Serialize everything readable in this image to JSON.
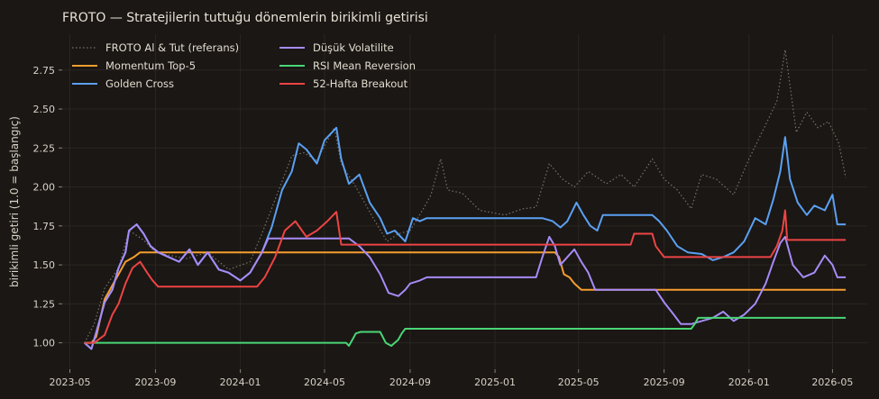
{
  "chart_data": {
    "type": "line",
    "title": "FROTO — Stratejilerin tuttuğu dönemlerin birikimli getirisi",
    "xlabel": "",
    "ylabel": "birikimli getiri (1.0 = başlangıç)",
    "xlim": [
      "2023-04-20",
      "2026-06-20"
    ],
    "ylim": [
      0.83,
      2.98
    ],
    "grid": true,
    "legend_position": "top-left",
    "x_ticks": [
      "2023-05",
      "2023-09",
      "2024-01",
      "2024-05",
      "2024-09",
      "2025-01",
      "2025-05",
      "2025-09",
      "2026-01",
      "2026-05"
    ],
    "y_ticks": [
      "1.00",
      "1.25",
      "1.50",
      "1.75",
      "2.00",
      "2.25",
      "2.50",
      "2.75"
    ],
    "colors": {
      "background": "#1a1714",
      "grid": "#2a2621",
      "text": "#d8d2c6",
      "benchmark": "#7a736a",
      "momentum": "#f59e2e",
      "golden": "#5ba0f2",
      "lowvol": "#a78bf7",
      "rsi": "#4ad576",
      "breakout": "#ec4444"
    },
    "series": [
      {
        "name": "FROTO Al & Tut (referans)",
        "color": "#7a736a",
        "dashed": true,
        "points": [
          [
            "2023-05-22",
            1.0
          ],
          [
            "2023-06-05",
            1.12
          ],
          [
            "2023-06-20",
            1.35
          ],
          [
            "2023-07-10",
            1.48
          ],
          [
            "2023-07-25",
            1.72
          ],
          [
            "2023-08-15",
            1.66
          ],
          [
            "2023-09-01",
            1.58
          ],
          [
            "2023-10-15",
            1.54
          ],
          [
            "2023-11-15",
            1.58
          ],
          [
            "2023-12-15",
            1.47
          ],
          [
            "2024-01-15",
            1.52
          ],
          [
            "2024-02-01",
            1.7
          ],
          [
            "2024-02-20",
            1.92
          ],
          [
            "2024-03-15",
            2.2
          ],
          [
            "2024-04-01",
            2.22
          ],
          [
            "2024-04-20",
            2.17
          ],
          [
            "2024-05-15",
            2.38
          ],
          [
            "2024-05-25",
            2.15
          ],
          [
            "2024-06-15",
            2.0
          ],
          [
            "2024-07-10",
            1.8
          ],
          [
            "2024-07-30",
            1.65
          ],
          [
            "2024-08-15",
            1.7
          ],
          [
            "2024-09-01",
            1.72
          ],
          [
            "2024-09-20",
            1.86
          ],
          [
            "2024-10-01",
            1.95
          ],
          [
            "2024-10-15",
            2.18
          ],
          [
            "2024-10-25",
            1.98
          ],
          [
            "2024-11-15",
            1.96
          ],
          [
            "2024-12-10",
            1.85
          ],
          [
            "2025-01-15",
            1.82
          ],
          [
            "2025-02-10",
            1.86
          ],
          [
            "2025-03-01",
            1.87
          ],
          [
            "2025-03-20",
            2.15
          ],
          [
            "2025-04-08",
            2.05
          ],
          [
            "2025-04-25",
            2.0
          ],
          [
            "2025-05-15",
            2.1
          ],
          [
            "2025-06-10",
            2.02
          ],
          [
            "2025-07-01",
            2.08
          ],
          [
            "2025-07-20",
            2.0
          ],
          [
            "2025-08-15",
            2.18
          ],
          [
            "2025-09-01",
            2.05
          ],
          [
            "2025-09-20",
            1.98
          ],
          [
            "2025-10-10",
            1.86
          ],
          [
            "2025-10-25",
            2.08
          ],
          [
            "2025-11-15",
            2.05
          ],
          [
            "2025-12-10",
            1.95
          ],
          [
            "2026-01-01",
            2.18
          ],
          [
            "2026-01-25",
            2.4
          ],
          [
            "2026-02-10",
            2.55
          ],
          [
            "2026-02-22",
            2.88
          ],
          [
            "2026-03-10",
            2.35
          ],
          [
            "2026-03-25",
            2.48
          ],
          [
            "2026-04-10",
            2.38
          ],
          [
            "2026-04-25",
            2.42
          ],
          [
            "2026-05-10",
            2.28
          ],
          [
            "2026-05-20",
            2.06
          ]
        ]
      },
      {
        "name": "Momentum Top-5",
        "color": "#f59e2e",
        "points": [
          [
            "2023-05-22",
            1.0
          ],
          [
            "2023-06-01",
            1.0
          ],
          [
            "2023-06-08",
            1.04
          ],
          [
            "2023-06-20",
            1.28
          ],
          [
            "2023-07-05",
            1.4
          ],
          [
            "2023-07-20",
            1.52
          ],
          [
            "2023-08-01",
            1.55
          ],
          [
            "2023-08-10",
            1.58
          ],
          [
            "2024-05-25",
            1.58
          ],
          [
            "2025-03-28",
            1.58
          ],
          [
            "2025-04-03",
            1.55
          ],
          [
            "2025-04-10",
            1.44
          ],
          [
            "2025-04-18",
            1.42
          ],
          [
            "2025-04-25",
            1.38
          ],
          [
            "2025-05-05",
            1.34
          ],
          [
            "2026-05-20",
            1.34
          ]
        ]
      },
      {
        "name": "Golden Cross",
        "color": "#5ba0f2",
        "points": [
          [
            "2023-05-22",
            1.0
          ],
          [
            "2023-06-01",
            0.96
          ],
          [
            "2023-06-10",
            1.1
          ],
          [
            "2023-06-20",
            1.26
          ],
          [
            "2023-07-01",
            1.34
          ],
          [
            "2023-07-10",
            1.48
          ],
          [
            "2023-07-20",
            1.58
          ],
          [
            "2023-07-25",
            1.72
          ],
          [
            "2023-08-05",
            1.76
          ],
          [
            "2023-08-15",
            1.7
          ],
          [
            "2023-08-25",
            1.62
          ],
          [
            "2023-09-05",
            1.58
          ],
          [
            "2023-09-20",
            1.55
          ],
          [
            "2023-10-05",
            1.52
          ],
          [
            "2023-10-20",
            1.6
          ],
          [
            "2023-11-01",
            1.5
          ],
          [
            "2023-11-15",
            1.58
          ],
          [
            "2023-12-01",
            1.47
          ],
          [
            "2023-12-15",
            1.45
          ],
          [
            "2024-01-01",
            1.4
          ],
          [
            "2024-01-15",
            1.45
          ],
          [
            "2024-02-01",
            1.58
          ],
          [
            "2024-02-15",
            1.74
          ],
          [
            "2024-03-01",
            1.98
          ],
          [
            "2024-03-15",
            2.1
          ],
          [
            "2024-03-25",
            2.28
          ],
          [
            "2024-04-05",
            2.24
          ],
          [
            "2024-04-20",
            2.15
          ],
          [
            "2024-05-01",
            2.3
          ],
          [
            "2024-05-18",
            2.38
          ],
          [
            "2024-05-25",
            2.18
          ],
          [
            "2024-06-05",
            2.02
          ],
          [
            "2024-06-20",
            2.08
          ],
          [
            "2024-07-05",
            1.9
          ],
          [
            "2024-07-20",
            1.8
          ],
          [
            "2024-07-30",
            1.7
          ],
          [
            "2024-08-10",
            1.72
          ],
          [
            "2024-08-25",
            1.65
          ],
          [
            "2024-09-05",
            1.8
          ],
          [
            "2024-09-15",
            1.78
          ],
          [
            "2024-09-25",
            1.8
          ],
          [
            "2025-03-10",
            1.8
          ],
          [
            "2025-03-25",
            1.78
          ],
          [
            "2025-04-05",
            1.74
          ],
          [
            "2025-04-15",
            1.78
          ],
          [
            "2025-04-28",
            1.9
          ],
          [
            "2025-05-08",
            1.82
          ],
          [
            "2025-05-18",
            1.75
          ],
          [
            "2025-05-28",
            1.72
          ],
          [
            "2025-06-05",
            1.82
          ],
          [
            "2025-08-15",
            1.82
          ],
          [
            "2025-08-25",
            1.78
          ],
          [
            "2025-09-05",
            1.72
          ],
          [
            "2025-09-20",
            1.62
          ],
          [
            "2025-10-05",
            1.58
          ],
          [
            "2025-10-25",
            1.57
          ],
          [
            "2025-11-10",
            1.53
          ],
          [
            "2025-11-25",
            1.55
          ],
          [
            "2025-12-10",
            1.58
          ],
          [
            "2025-12-25",
            1.65
          ],
          [
            "2026-01-10",
            1.8
          ],
          [
            "2026-01-25",
            1.76
          ],
          [
            "2026-02-05",
            1.92
          ],
          [
            "2026-02-15",
            2.1
          ],
          [
            "2026-02-22",
            2.32
          ],
          [
            "2026-03-01",
            2.05
          ],
          [
            "2026-03-12",
            1.9
          ],
          [
            "2026-03-25",
            1.82
          ],
          [
            "2026-04-05",
            1.88
          ],
          [
            "2026-04-20",
            1.85
          ],
          [
            "2026-05-01",
            1.95
          ],
          [
            "2026-05-08",
            1.76
          ],
          [
            "2026-05-20",
            1.76
          ]
        ]
      },
      {
        "name": "Düşük Volatilite",
        "color": "#a78bf7",
        "points": [
          [
            "2023-05-22",
            1.0
          ],
          [
            "2023-06-01",
            0.96
          ],
          [
            "2023-06-10",
            1.1
          ],
          [
            "2023-06-20",
            1.26
          ],
          [
            "2023-07-01",
            1.34
          ],
          [
            "2023-07-10",
            1.48
          ],
          [
            "2023-07-20",
            1.58
          ],
          [
            "2023-07-25",
            1.72
          ],
          [
            "2023-08-05",
            1.76
          ],
          [
            "2023-08-15",
            1.7
          ],
          [
            "2023-08-25",
            1.62
          ],
          [
            "2023-09-05",
            1.58
          ],
          [
            "2023-09-20",
            1.55
          ],
          [
            "2023-10-05",
            1.52
          ],
          [
            "2023-10-20",
            1.6
          ],
          [
            "2023-11-01",
            1.5
          ],
          [
            "2023-11-15",
            1.58
          ],
          [
            "2023-12-01",
            1.47
          ],
          [
            "2023-12-15",
            1.45
          ],
          [
            "2024-01-01",
            1.4
          ],
          [
            "2024-01-15",
            1.45
          ],
          [
            "2024-02-01",
            1.58
          ],
          [
            "2024-02-10",
            1.67
          ],
          [
            "2024-06-05",
            1.67
          ],
          [
            "2024-06-20",
            1.62
          ],
          [
            "2024-07-05",
            1.55
          ],
          [
            "2024-07-20",
            1.44
          ],
          [
            "2024-08-01",
            1.32
          ],
          [
            "2024-08-15",
            1.3
          ],
          [
            "2024-08-25",
            1.34
          ],
          [
            "2024-09-01",
            1.38
          ],
          [
            "2024-09-15",
            1.4
          ],
          [
            "2024-09-25",
            1.42
          ],
          [
            "2025-02-01",
            1.42
          ],
          [
            "2025-03-01",
            1.42
          ],
          [
            "2025-03-10",
            1.55
          ],
          [
            "2025-03-20",
            1.68
          ],
          [
            "2025-03-28",
            1.62
          ],
          [
            "2025-04-05",
            1.5
          ],
          [
            "2025-04-15",
            1.55
          ],
          [
            "2025-04-25",
            1.6
          ],
          [
            "2025-05-05",
            1.52
          ],
          [
            "2025-05-15",
            1.45
          ],
          [
            "2025-05-25",
            1.34
          ],
          [
            "2025-06-01",
            1.34
          ],
          [
            "2025-08-20",
            1.34
          ],
          [
            "2025-09-01",
            1.26
          ],
          [
            "2025-09-15",
            1.18
          ],
          [
            "2025-09-25",
            1.12
          ],
          [
            "2025-10-10",
            1.12
          ],
          [
            "2025-10-25",
            1.14
          ],
          [
            "2025-11-10",
            1.16
          ],
          [
            "2025-11-25",
            1.2
          ],
          [
            "2025-12-10",
            1.14
          ],
          [
            "2025-12-25",
            1.18
          ],
          [
            "2026-01-10",
            1.25
          ],
          [
            "2026-01-25",
            1.38
          ],
          [
            "2026-02-05",
            1.52
          ],
          [
            "2026-02-15",
            1.64
          ],
          [
            "2026-02-22",
            1.68
          ],
          [
            "2026-03-05",
            1.5
          ],
          [
            "2026-03-20",
            1.42
          ],
          [
            "2026-04-05",
            1.45
          ],
          [
            "2026-04-20",
            1.56
          ],
          [
            "2026-05-01",
            1.5
          ],
          [
            "2026-05-08",
            1.42
          ],
          [
            "2026-05-20",
            1.42
          ]
        ]
      },
      {
        "name": "RSI Mean Reversion",
        "color": "#4ad576",
        "points": [
          [
            "2023-05-22",
            1.0
          ],
          [
            "2024-06-01",
            1.0
          ],
          [
            "2024-06-05",
            0.98
          ],
          [
            "2024-06-10",
            1.02
          ],
          [
            "2024-06-15",
            1.06
          ],
          [
            "2024-06-22",
            1.07
          ],
          [
            "2024-07-20",
            1.07
          ],
          [
            "2024-07-28",
            1.0
          ],
          [
            "2024-08-05",
            0.98
          ],
          [
            "2024-08-15",
            1.02
          ],
          [
            "2024-08-20",
            1.06
          ],
          [
            "2024-08-25",
            1.09
          ],
          [
            "2025-10-10",
            1.09
          ],
          [
            "2025-10-15",
            1.12
          ],
          [
            "2025-10-20",
            1.16
          ],
          [
            "2026-05-20",
            1.16
          ]
        ]
      },
      {
        "name": "52-Hafta Breakout",
        "color": "#ec4444",
        "points": [
          [
            "2023-05-22",
            1.0
          ],
          [
            "2023-06-05",
            1.0
          ],
          [
            "2023-06-20",
            1.05
          ],
          [
            "2023-07-01",
            1.18
          ],
          [
            "2023-07-10",
            1.25
          ],
          [
            "2023-07-20",
            1.38
          ],
          [
            "2023-07-30",
            1.48
          ],
          [
            "2023-08-10",
            1.52
          ],
          [
            "2023-08-20",
            1.45
          ],
          [
            "2023-08-28",
            1.4
          ],
          [
            "2023-09-05",
            1.36
          ],
          [
            "2024-01-25",
            1.36
          ],
          [
            "2024-02-05",
            1.42
          ],
          [
            "2024-02-20",
            1.55
          ],
          [
            "2024-03-05",
            1.72
          ],
          [
            "2024-03-20",
            1.78
          ],
          [
            "2024-04-05",
            1.68
          ],
          [
            "2024-04-20",
            1.72
          ],
          [
            "2024-05-05",
            1.78
          ],
          [
            "2024-05-18",
            1.84
          ],
          [
            "2024-05-25",
            1.63
          ],
          [
            "2025-07-15",
            1.63
          ],
          [
            "2025-07-20",
            1.7
          ],
          [
            "2025-08-15",
            1.7
          ],
          [
            "2025-08-20",
            1.62
          ],
          [
            "2025-09-01",
            1.55
          ],
          [
            "2026-02-01",
            1.55
          ],
          [
            "2026-02-10",
            1.62
          ],
          [
            "2026-02-18",
            1.72
          ],
          [
            "2026-02-22",
            1.85
          ],
          [
            "2026-02-25",
            1.66
          ],
          [
            "2026-05-20",
            1.66
          ]
        ]
      }
    ]
  }
}
